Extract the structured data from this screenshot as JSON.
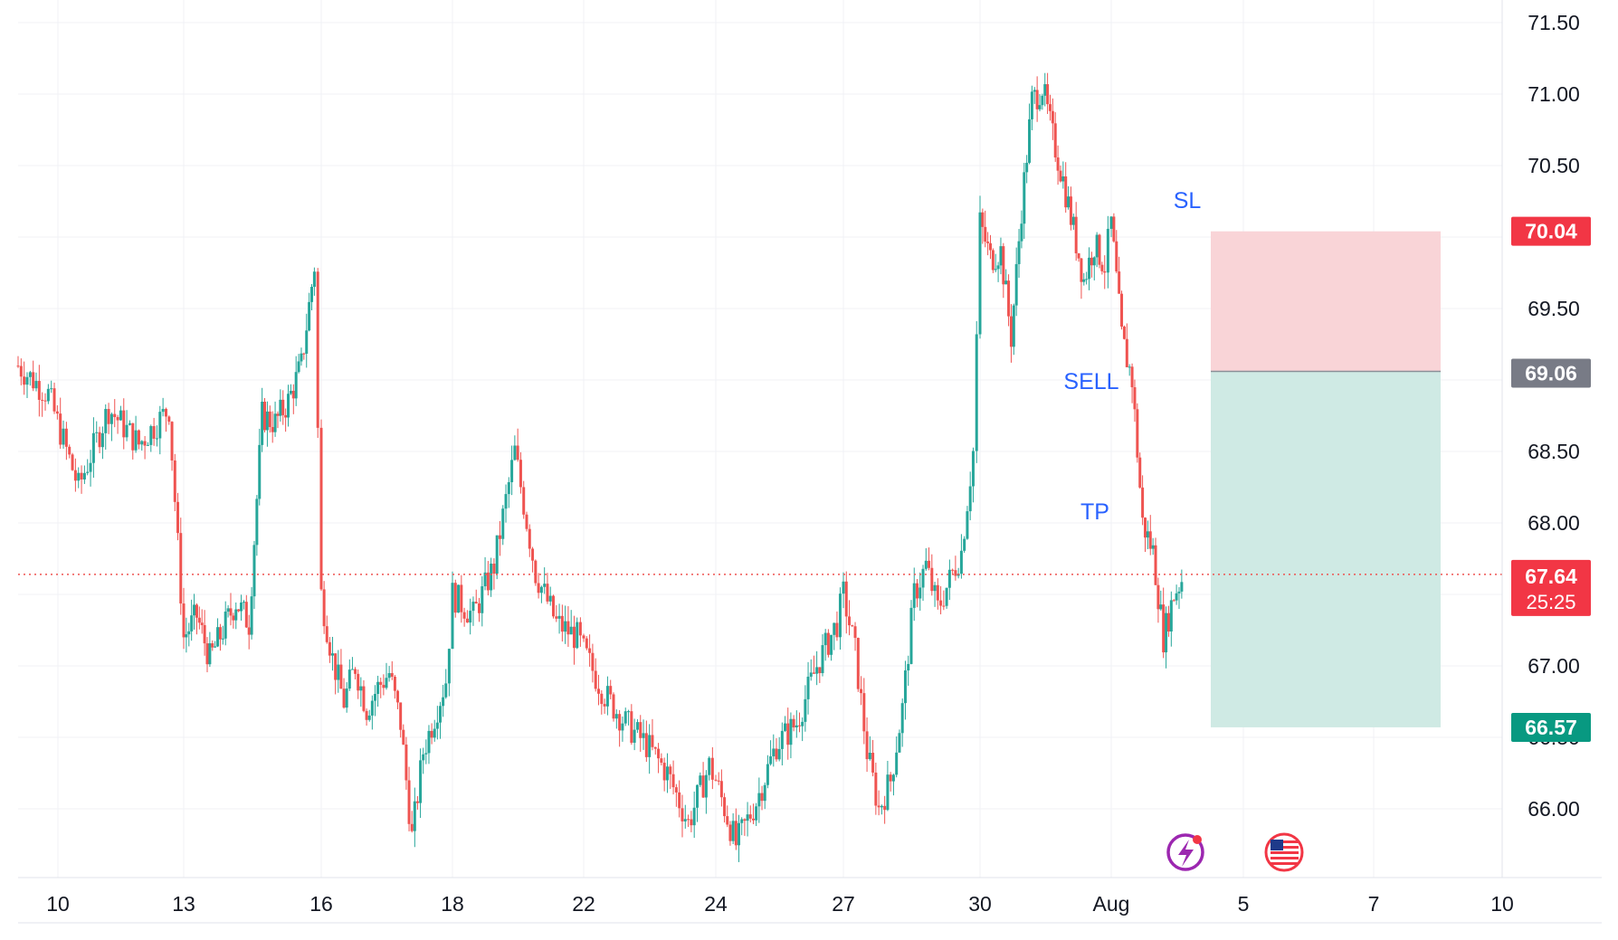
{
  "chart_data": {
    "type": "candlestick",
    "title": "",
    "xlabel": "",
    "ylabel": "",
    "ylim": [
      65.5,
      71.65
    ],
    "grid": true,
    "y_ticks": [
      "71.50",
      "71.00",
      "70.50",
      "70.00",
      "69.50",
      "69.00",
      "68.50",
      "68.00",
      "67.50",
      "67.00",
      "66.50",
      "66.00"
    ],
    "x_ticks": [
      "10",
      "13",
      "16",
      "18",
      "22",
      "24",
      "27",
      "30",
      "Aug",
      "5",
      "7",
      "10"
    ],
    "colors": {
      "up": "#26a69a",
      "down": "#ef5350",
      "stop_zone": "#f9d4d7",
      "target_zone": "#cfeae4",
      "label_text": "#2962ff"
    },
    "series_path": [
      [
        "10",
        69.1
      ],
      [
        "10",
        68.9
      ],
      [
        "10",
        68.25
      ],
      [
        "10",
        68.8
      ],
      [
        "10",
        68.55
      ],
      [
        "10",
        68.8
      ],
      [
        "13",
        67.2
      ],
      [
        "13",
        67.35
      ],
      [
        "13",
        67.05
      ],
      [
        "13",
        67.25
      ],
      [
        "13",
        67.45
      ],
      [
        "13",
        67.3
      ],
      [
        "13",
        68.75
      ],
      [
        "13",
        68.7
      ],
      [
        "13",
        68.85
      ],
      [
        "13",
        69.1
      ],
      [
        "13",
        69.8
      ],
      [
        "16",
        67.5
      ],
      [
        "16",
        67.05
      ],
      [
        "16",
        66.75
      ],
      [
        "16",
        67.0
      ],
      [
        "16",
        66.7
      ],
      [
        "16",
        66.85
      ],
      [
        "16",
        66.95
      ],
      [
        "16",
        66.6
      ],
      [
        "16",
        65.8
      ],
      [
        "16",
        66.4
      ],
      [
        "16",
        66.65
      ],
      [
        "16",
        66.9
      ],
      [
        "18",
        67.5
      ],
      [
        "18",
        67.35
      ],
      [
        "18",
        67.7
      ],
      [
        "18",
        68.5
      ],
      [
        "18",
        67.65
      ],
      [
        "18",
        67.3
      ],
      [
        "18",
        67.2
      ],
      [
        "22",
        67.1
      ],
      [
        "22",
        66.8
      ],
      [
        "22",
        66.6
      ],
      [
        "22",
        66.45
      ],
      [
        "22",
        66.25
      ],
      [
        "22",
        65.9
      ],
      [
        "22",
        66.3
      ],
      [
        "24",
        66.2
      ],
      [
        "24",
        65.75
      ],
      [
        "24",
        66.05
      ],
      [
        "24",
        66.45
      ],
      [
        "24",
        66.6
      ],
      [
        "24",
        67.0
      ],
      [
        "24",
        67.3
      ],
      [
        "27",
        67.5
      ],
      [
        "27",
        67.1
      ],
      [
        "27",
        66.4
      ],
      [
        "27",
        66.0
      ],
      [
        "27",
        66.2
      ],
      [
        "27",
        66.7
      ],
      [
        "27",
        67.5
      ],
      [
        "27",
        67.7
      ],
      [
        "27",
        67.4
      ],
      [
        "27",
        67.6
      ],
      [
        "27",
        67.8
      ],
      [
        "27",
        68.5
      ],
      [
        "30",
        70.1
      ],
      [
        "30",
        69.85
      ],
      [
        "30",
        69.9
      ],
      [
        "30",
        69.3
      ],
      [
        "30",
        70.2
      ],
      [
        "30",
        70.95
      ],
      [
        "30",
        71.05
      ],
      [
        "30",
        70.7
      ],
      [
        "30",
        70.4
      ],
      [
        "30",
        70.05
      ],
      [
        "30",
        69.7
      ],
      [
        "30",
        69.95
      ],
      [
        "30",
        69.8
      ],
      [
        "Aug",
        70.1
      ],
      [
        "Aug",
        69.3
      ],
      [
        "Aug",
        69.0
      ],
      [
        "Aug",
        68.0
      ],
      [
        "Aug",
        67.8
      ],
      [
        "Aug",
        67.2
      ],
      [
        "Aug",
        67.5
      ],
      [
        "Aug",
        67.64
      ]
    ],
    "last_price": "67.64",
    "countdown": "25:25",
    "trade": {
      "direction": "SELL",
      "entry": "69.06",
      "stop_loss": "70.04",
      "take_profit": "66.57"
    },
    "annotations": {
      "sl": "SL",
      "sell": "SELL",
      "tp": "TP"
    },
    "icons": [
      "lightning-event-icon",
      "us-flag-icon"
    ]
  }
}
